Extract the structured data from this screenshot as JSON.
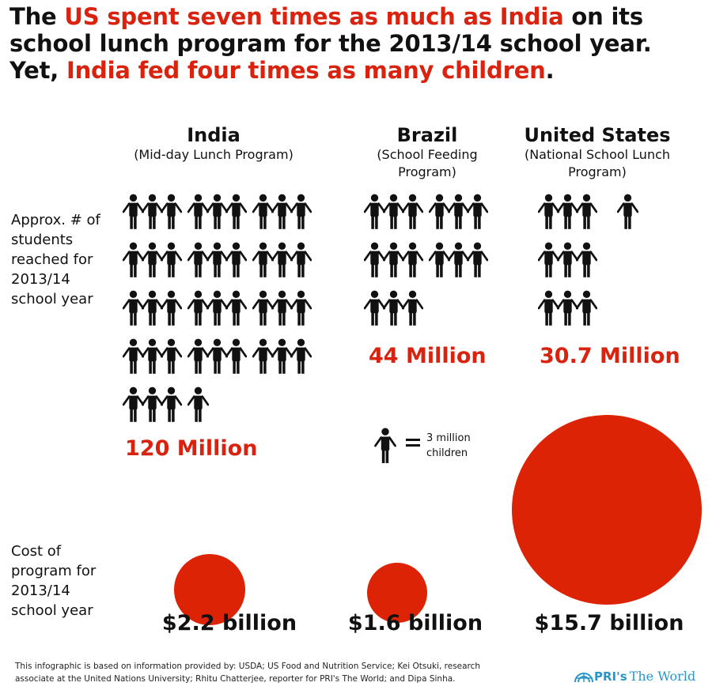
{
  "headline": {
    "part1": "The ",
    "highlight1": "US spent seven times as much as India",
    "part2": " on its school lunch program for the 2013/14 school year. Yet, ",
    "highlight2": "India fed four times as many children",
    "part3": "."
  },
  "countries": [
    {
      "name": "India",
      "program": "(Mid-day Lunch Program)",
      "students": "120 Million",
      "full_figures": 39,
      "partial_figure": 1,
      "cost": "$2.2 billion",
      "cost_value_billion": 2.2
    },
    {
      "name": "Brazil",
      "program": "(School Feeding Program)",
      "students": "44 Million",
      "full_figures": 15,
      "partial_figure": 0,
      "cost": "$1.6 billion",
      "cost_value_billion": 1.6
    },
    {
      "name": "United States",
      "program": "(National School Lunch Program)",
      "students": "30.7 Million",
      "full_figures": 10,
      "partial_figure": 0,
      "cost": "$15.7 billion",
      "cost_value_billion": 15.7
    }
  ],
  "labels": {
    "students_row": "Approx. # of students reached for 2013/14 school year",
    "cost_row": "Cost of program for 2013/14 school year"
  },
  "legend": {
    "icon": "child-figure-icon",
    "text": "3 million children"
  },
  "footnote": "This infographic is based on information provided by: USDA; US Food and Nutrition Service; Kei Otsuki, research associate at the United Nations University; Rhitu Chatterjee, reporter for PRI's The World; and Dipa Sinha.",
  "logo": {
    "icon": "globe-lines-icon",
    "brand": "PRI's",
    "name": "The World"
  },
  "colors": {
    "accent": "#d9230f",
    "circle": "#dd2306",
    "logo": "#2b95c9"
  }
}
